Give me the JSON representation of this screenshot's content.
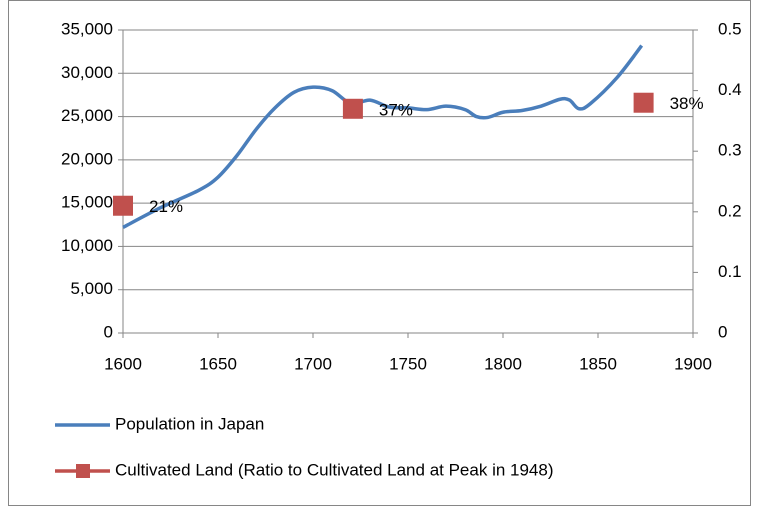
{
  "chart_data": {
    "type": "line",
    "series": [
      {
        "name": "Population in Japan",
        "color": "#4a7ebb",
        "type": "line",
        "x": [
          1600,
          1620,
          1640,
          1650,
          1660,
          1670,
          1680,
          1690,
          1700,
          1710,
          1720,
          1730,
          1740,
          1750,
          1760,
          1770,
          1780,
          1786,
          1792,
          1800,
          1810,
          1820,
          1830,
          1835,
          1840,
          1846,
          1860,
          1873
        ],
        "values": [
          12200,
          14500,
          16500,
          18000,
          20500,
          23500,
          26000,
          27800,
          28400,
          28000,
          26500,
          26900,
          26100,
          26000,
          25800,
          26200,
          25800,
          25000,
          24900,
          25500,
          25700,
          26200,
          27000,
          26900,
          25900,
          26500,
          29500,
          33200
        ]
      },
      {
        "name": "Cultivated Land (Ratio to Cultivated Land at Peak in 1948)",
        "color": "#c0504d",
        "type": "scatter",
        "axis": "y2",
        "x": [
          1600,
          1721,
          1874
        ],
        "values": [
          0.21,
          0.37,
          0.38
        ],
        "value_labels": [
          "21%",
          "37%",
          "38%"
        ]
      }
    ],
    "xlim": [
      1600,
      1900
    ],
    "xticks": [
      1600,
      1650,
      1700,
      1750,
      1800,
      1850,
      1900
    ],
    "ylim": [
      0,
      35000
    ],
    "yticks": [
      0,
      {
        "value": 5000,
        "label": "5,000"
      },
      {
        "value": 10000,
        "label": "10,000"
      },
      {
        "value": 15000,
        "label": "15,000"
      },
      {
        "value": 20000,
        "label": "20,000"
      },
      {
        "value": 25000,
        "label": "25,000"
      },
      {
        "value": 30000,
        "label": "30,000"
      },
      {
        "value": 35000,
        "label": "35,000"
      }
    ],
    "y2lim": [
      0,
      0.5
    ],
    "y2ticks": [
      0,
      0.1,
      0.2,
      0.3,
      0.4,
      0.5
    ],
    "grid": true,
    "legend": "bottom"
  }
}
